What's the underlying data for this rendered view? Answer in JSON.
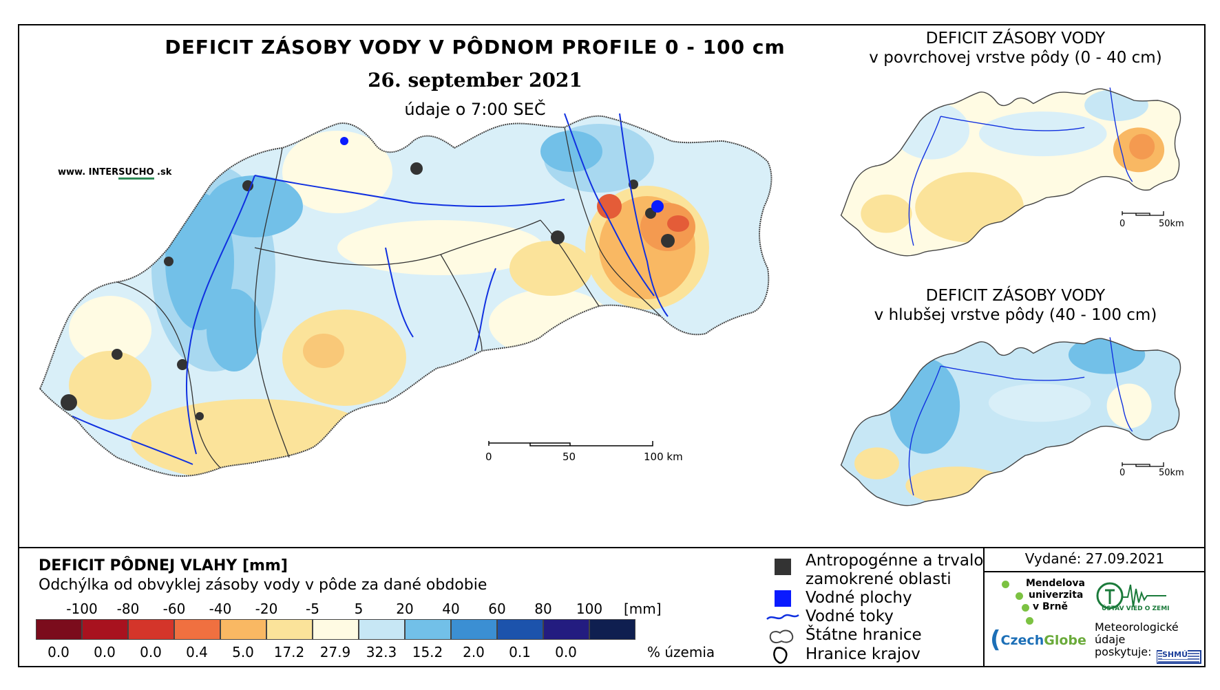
{
  "title": {
    "main": "DEFICIT ZÁSOBY VODY V PÔDNOM PROFILE 0 - 100 cm",
    "date": "26. september 2021",
    "time": "údaje o 7:00 SEČ"
  },
  "web": {
    "prefix": "www. INTER",
    "accent": "SUCHO",
    "suffix": " .sk"
  },
  "inset_top": {
    "title_line1": "DEFICIT ZÁSOBY VODY",
    "title_line2": "v povrchovej vrstve pôdy (0 - 40 cm)",
    "scale": {
      "start": "0",
      "end": "50km"
    }
  },
  "inset_bottom": {
    "title_line1": "DEFICIT ZÁSOBY VODY",
    "title_line2": "v hlubšej vrstve pôdy (40 - 100 cm)",
    "scale": {
      "start": "0",
      "end": "50km"
    }
  },
  "main_scale": {
    "ticks": [
      "0",
      "50",
      "100 km"
    ]
  },
  "legend": {
    "title": "DEFICIT PÔDNEJ VLAHY [mm]",
    "subtitle": "Odchýlka od obvyklej zásoby vody v pôde za dané obdobie",
    "unit": "[mm]",
    "pct_label": "% územia",
    "boundaries": [
      "-100",
      "-80",
      "-60",
      "-40",
      "-20",
      "-5",
      "5",
      "20",
      "40",
      "60",
      "80",
      "100"
    ],
    "classes": [
      {
        "color": "#7b0c1c",
        "pct": "0.0"
      },
      {
        "color": "#a8121f",
        "pct": "0.0"
      },
      {
        "color": "#d4352a",
        "pct": "0.0"
      },
      {
        "color": "#f07040",
        "pct": "0.4"
      },
      {
        "color": "#f9b863",
        "pct": "5.0"
      },
      {
        "color": "#fbe39a",
        "pct": "17.2"
      },
      {
        "color": "#fffbe3",
        "pct": "27.9"
      },
      {
        "color": "#c7e7f5",
        "pct": "32.3"
      },
      {
        "color": "#72c0e8",
        "pct": "15.2"
      },
      {
        "color": "#3b8fd3",
        "pct": "2.0"
      },
      {
        "color": "#1c53ac",
        "pct": "0.1"
      },
      {
        "color": "#231c80",
        "pct": "0.0"
      },
      {
        "color": "#0f1f50",
        "pct": ""
      }
    ]
  },
  "key": {
    "anthro_line1": "Antropogénne a trvalo",
    "anthro_line2": "zamokrené oblasti",
    "water_bodies": "Vodné plochy",
    "rivers": "Vodné toky",
    "state_border": "Štátne hranice",
    "region_border": "Hranice krajov"
  },
  "issued": "Vydané: 27.09.2021",
  "logos": {
    "mendel": [
      "Mendelova",
      "univerzita",
      "v Brně"
    ],
    "czechglobe_a": "Czech",
    "czechglobe_b": "Globe",
    "uvoz": "ÚSTAV VIED O ZEMI",
    "meteo": [
      "Meteorologické",
      "údaje",
      "poskytuje:"
    ],
    "shmu": "SHMÚ"
  },
  "colors": {
    "border": "#000000",
    "river": "#1030e0",
    "urban": "#333333",
    "water": "#0a1bff"
  }
}
